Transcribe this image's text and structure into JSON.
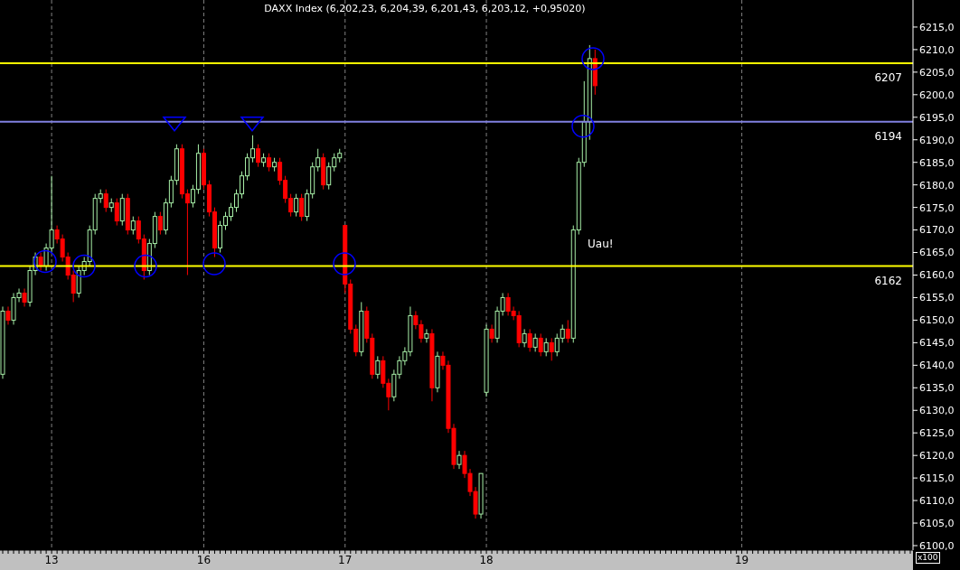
{
  "chart_data": {
    "type": "candlestick",
    "title": "DAXX Index (6,202,23, 6,204,39, 6,201,43, 6,203,12, +0,95020)",
    "annotations": [
      "Uau!",
      "x100"
    ],
    "categories": [
      null,
      null,
      null,
      null,
      null,
      null,
      null,
      null,
      null,
      "13",
      null,
      null,
      null,
      null,
      null,
      null,
      null,
      null,
      null,
      null,
      null,
      null,
      null,
      null,
      null,
      null,
      null,
      null,
      null,
      null,
      null,
      null,
      null,
      null,
      null,
      null,
      null,
      "16",
      null,
      null,
      null,
      null,
      null,
      null,
      null,
      null,
      null,
      null,
      null,
      null,
      null,
      null,
      null,
      null,
      null,
      null,
      null,
      null,
      null,
      null,
      null,
      null,
      null,
      "17",
      null,
      null,
      null,
      null,
      null,
      null,
      null,
      null,
      null,
      null,
      null,
      null,
      null,
      null,
      null,
      null,
      null,
      null,
      null,
      null,
      null,
      null,
      null,
      null,
      null,
      "18",
      null,
      null,
      null,
      null,
      null,
      null,
      null,
      null,
      null,
      null,
      null,
      null,
      null,
      null,
      null,
      null,
      null,
      null,
      null,
      null,
      null,
      null,
      null,
      null,
      null,
      null,
      null,
      null,
      null,
      null,
      null,
      null,
      null,
      null,
      null,
      null,
      null,
      null,
      null,
      null,
      null,
      null,
      null,
      null,
      null,
      null,
      "19",
      null,
      null,
      null,
      null,
      null,
      null,
      null,
      null,
      null,
      null,
      null,
      null,
      null,
      null,
      null,
      null,
      null,
      null,
      null,
      null,
      null,
      null,
      null,
      null,
      null,
      null,
      null,
      null,
      null,
      null,
      null
    ],
    "ohlc": [
      [
        6138,
        6153,
        6137,
        6152
      ],
      [
        6152,
        6153,
        6149,
        6150
      ],
      [
        6150,
        6156,
        6149,
        6155
      ],
      [
        6155,
        6157,
        6154,
        6156
      ],
      [
        6156,
        6157,
        6153,
        6154
      ],
      [
        6154,
        6162,
        6153,
        6161
      ],
      [
        6161,
        6165,
        6160,
        6164
      ],
      [
        6164,
        6165,
        6161,
        6162
      ],
      [
        6162,
        6167,
        6161,
        6166
      ],
      [
        6166,
        6182,
        6165,
        6170
      ],
      [
        6170,
        6171,
        6167,
        6168
      ],
      [
        6168,
        6169,
        6163,
        6164
      ],
      [
        6164,
        6165,
        6159,
        6160
      ],
      [
        6160,
        6161,
        6154,
        6156
      ],
      [
        6156,
        6162,
        6155,
        6161
      ],
      [
        6161,
        6164,
        6160,
        6163
      ],
      [
        6163,
        6171,
        6162,
        6170
      ],
      [
        6170,
        6178,
        6169,
        6177
      ],
      [
        6177,
        6179,
        6176,
        6178
      ],
      [
        6178,
        6179,
        6174,
        6175
      ],
      [
        6175,
        6177,
        6174,
        6176
      ],
      [
        6176,
        6177,
        6171,
        6172
      ],
      [
        6172,
        6178,
        6171,
        6177
      ],
      [
        6177,
        6178,
        6169,
        6170
      ],
      [
        6170,
        6173,
        6169,
        6172
      ],
      [
        6172,
        6173,
        6167,
        6168
      ],
      [
        6168,
        6169,
        6159,
        6161
      ],
      [
        6161,
        6168,
        6160,
        6167
      ],
      [
        6167,
        6174,
        6166,
        6173
      ],
      [
        6173,
        6174,
        6169,
        6170
      ],
      [
        6170,
        6177,
        6169,
        6176
      ],
      [
        6176,
        6182,
        6175,
        6181
      ],
      [
        6181,
        6189,
        6180,
        6188
      ],
      [
        6188,
        6189,
        6177,
        6178
      ],
      [
        6178,
        6179,
        6160,
        6176
      ],
      [
        6176,
        6180,
        6175,
        6179
      ],
      [
        6179,
        6189,
        6178,
        6187
      ],
      [
        6187,
        6188,
        6179,
        6180
      ],
      [
        6180,
        6181,
        6173,
        6174
      ],
      [
        6174,
        6175,
        6164,
        6166
      ],
      [
        6166,
        6172,
        6165,
        6171
      ],
      [
        6171,
        6174,
        6170,
        6173
      ],
      [
        6173,
        6176,
        6172,
        6175
      ],
      [
        6175,
        6179,
        6174,
        6178
      ],
      [
        6178,
        6183,
        6177,
        6182
      ],
      [
        6182,
        6187,
        6181,
        6186
      ],
      [
        6186,
        6191,
        6185,
        6188
      ],
      [
        6188,
        6189,
        6184,
        6185
      ],
      [
        6185,
        6187,
        6184,
        6186
      ],
      [
        6186,
        6187,
        6183,
        6184
      ],
      [
        6184,
        6186,
        6183,
        6185
      ],
      [
        6185,
        6186,
        6180,
        6181
      ],
      [
        6181,
        6182,
        6176,
        6177
      ],
      [
        6177,
        6178,
        6173,
        6174
      ],
      [
        6174,
        6178,
        6173,
        6177
      ],
      [
        6177,
        6178,
        6172,
        6173
      ],
      [
        6173,
        6179,
        6172,
        6178
      ],
      [
        6178,
        6185,
        6177,
        6184
      ],
      [
        6184,
        6188,
        6183,
        6186
      ],
      [
        6186,
        6187,
        6179,
        6180
      ],
      [
        6180,
        6185,
        6179,
        6184
      ],
      [
        6184,
        6187,
        6183,
        6186
      ],
      [
        6186,
        6188,
        6185,
        6187
      ],
      [
        6171,
        6171,
        6156,
        6158
      ],
      [
        6158,
        6159,
        6147,
        6148
      ],
      [
        6148,
        6149,
        6142,
        6143
      ],
      [
        6143,
        6154,
        6142,
        6152
      ],
      [
        6152,
        6153,
        6145,
        6146
      ],
      [
        6146,
        6147,
        6137,
        6138
      ],
      [
        6138,
        6142,
        6137,
        6141
      ],
      [
        6141,
        6142,
        6135,
        6136
      ],
      [
        6136,
        6137,
        6130,
        6133
      ],
      [
        6133,
        6139,
        6132,
        6138
      ],
      [
        6138,
        6142,
        6137,
        6141
      ],
      [
        6141,
        6144,
        6140,
        6143
      ],
      [
        6143,
        6153,
        6142,
        6151
      ],
      [
        6151,
        6152,
        6148,
        6149
      ],
      [
        6149,
        6150,
        6145,
        6146
      ],
      [
        6146,
        6148,
        6145,
        6147
      ],
      [
        6147,
        6148,
        6132,
        6135
      ],
      [
        6135,
        6143,
        6134,
        6142
      ],
      [
        6142,
        6143,
        6139,
        6140
      ],
      [
        6140,
        6141,
        6125,
        6126
      ],
      [
        6126,
        6127,
        6117,
        6118
      ],
      [
        6118,
        6121,
        6117,
        6120
      ],
      [
        6120,
        6121,
        6115,
        6116
      ],
      [
        6116,
        6117,
        6111,
        6112
      ],
      [
        6112,
        6113,
        6106,
        6107
      ],
      [
        6107,
        6116,
        6106,
        6116
      ],
      [
        6134,
        6149,
        6133,
        6148
      ],
      [
        6148,
        6149,
        6145,
        6146
      ],
      [
        6146,
        6153,
        6145,
        6152
      ],
      [
        6152,
        6156,
        6151,
        6155
      ],
      [
        6155,
        6156,
        6151,
        6152
      ],
      [
        6152,
        6153,
        6150,
        6151
      ],
      [
        6151,
        6152,
        6144,
        6145
      ],
      [
        6145,
        6148,
        6144,
        6147
      ],
      [
        6147,
        6148,
        6143,
        6144
      ],
      [
        6144,
        6147,
        6143,
        6146
      ],
      [
        6146,
        6147,
        6142,
        6143
      ],
      [
        6143,
        6146,
        6142,
        6145
      ],
      [
        6145,
        6146,
        6141,
        6143
      ],
      [
        6143,
        6147,
        6142,
        6146
      ],
      [
        6146,
        6149,
        6145,
        6148
      ],
      [
        6148,
        6150,
        6145,
        6146
      ],
      [
        6146,
        6171,
        6145,
        6170
      ],
      [
        6170,
        6186,
        6169,
        6185
      ],
      [
        6185,
        6203,
        6184,
        6194
      ],
      [
        6194,
        6211,
        6190,
        6208
      ],
      [
        6208,
        6210,
        6200,
        6202
      ],
      null,
      null,
      null,
      null,
      null,
      null,
      null,
      null,
      null,
      null,
      null,
      null,
      null,
      null,
      null,
      null,
      null,
      null,
      null,
      null,
      null,
      null,
      null,
      null,
      null,
      null,
      null,
      null,
      null,
      null,
      null,
      null,
      null,
      null,
      null,
      null,
      null,
      null,
      null,
      null,
      null,
      null,
      null,
      null,
      null,
      null,
      null,
      null,
      null,
      null,
      null,
      null,
      null,
      null,
      null,
      null,
      null,
      null
    ],
    "ylim": [
      6099,
      6221
    ],
    "yticks": [
      {
        "value": 6100,
        "label": "6100,0"
      },
      {
        "value": 6105,
        "label": "6105,0"
      },
      {
        "value": 6110,
        "label": "6110,0"
      },
      {
        "value": 6115,
        "label": "6115,0"
      },
      {
        "value": 6120,
        "label": "6120,0"
      },
      {
        "value": 6125,
        "label": "6125,0"
      },
      {
        "value": 6130,
        "label": "6130,0"
      },
      {
        "value": 6135,
        "label": "6135,0"
      },
      {
        "value": 6140,
        "label": "6140,0"
      },
      {
        "value": 6145,
        "label": "6145,0"
      },
      {
        "value": 6150,
        "label": "6150,0"
      },
      {
        "value": 6155,
        "label": "6155,0"
      },
      {
        "value": 6160,
        "label": "6160,0"
      },
      {
        "value": 6165,
        "label": "6165,0"
      },
      {
        "value": 6170,
        "label": "6170,0"
      },
      {
        "value": 6175,
        "label": "6175,0"
      },
      {
        "value": 6180,
        "label": "6180,0"
      },
      {
        "value": 6185,
        "label": "6185,0"
      },
      {
        "value": 6190,
        "label": "6190,0"
      },
      {
        "value": 6195,
        "label": "6195,0"
      },
      {
        "value": 6200,
        "label": "6200,0"
      },
      {
        "value": 6205,
        "label": "6205,0"
      },
      {
        "value": 6210,
        "label": "6210,0"
      },
      {
        "value": 6215,
        "label": "6215,0"
      }
    ],
    "ref_lines": [
      {
        "axis": "y",
        "value": 6207,
        "label": "6207",
        "color": "#ffff00"
      },
      {
        "axis": "y",
        "value": 6194,
        "label": "6194",
        "color": "#8080e0"
      },
      {
        "axis": "y",
        "value": 6162,
        "label": "6162",
        "color": "#ffff00"
      }
    ],
    "grid": "x"
  }
}
